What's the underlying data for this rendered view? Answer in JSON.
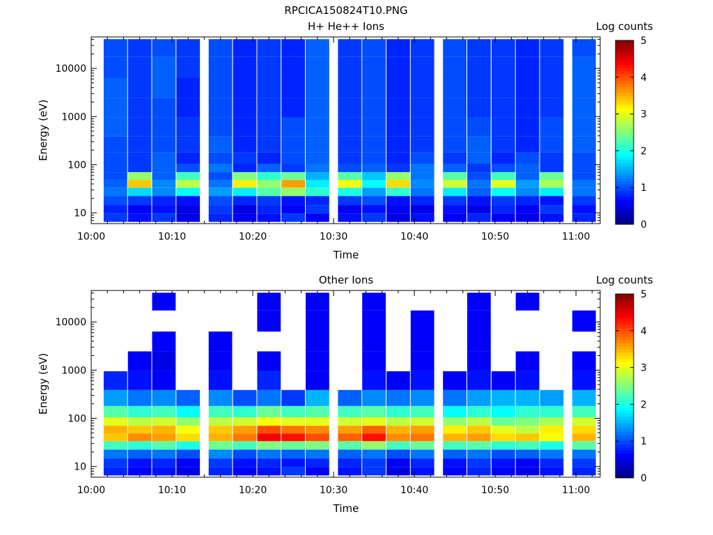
{
  "figure_title": "RPCICA150824T10.PNG",
  "colorbar_label": "Log counts",
  "colorbar_ticks": [
    "0",
    "1",
    "2",
    "3",
    "4",
    "5"
  ],
  "colorbar_range": [
    0,
    5
  ],
  "colormap": "jet",
  "panels": [
    {
      "title": "H+ He++ Ions",
      "xlabel": "Time",
      "ylabel": "Energy (eV)"
    },
    {
      "title": "Other Ions",
      "xlabel": "Time",
      "ylabel": "Energy (eV)"
    }
  ],
  "x_ticks": [
    "10:00",
    "10:10",
    "10:20",
    "10:30",
    "10:40",
    "10:50",
    "11:00"
  ],
  "y_ticks": [
    "10",
    "100",
    "1000",
    "10000"
  ],
  "chart_data": [
    {
      "type": "heatmap",
      "title": "H+ He++ Ions",
      "xlabel": "Time",
      "ylabel": "Energy (eV)",
      "yscale": "log",
      "ylim": [
        6,
        45000
      ],
      "xlim": [
        "10:00",
        "11:03"
      ],
      "zlabel": "Log counts",
      "zlim": [
        0,
        5
      ],
      "x": [
        "10:03",
        "10:06",
        "10:09",
        "10:12",
        "10:16",
        "10:19",
        "10:22",
        "10:25",
        "10:28",
        "10:32",
        "10:35",
        "10:38",
        "10:41",
        "10:45",
        "10:48",
        "10:51",
        "10:54",
        "10:57",
        "11:01"
      ],
      "energy_bands_eV": [
        8,
        12,
        18,
        28,
        40,
        58,
        85,
        130,
        250,
        600,
        1500,
        4000,
        10000,
        30000
      ],
      "z": [
        [
          0.9,
          0.7,
          0.9,
          0.5,
          0.8,
          0.6,
          0.7,
          0.9,
          0.6,
          0.7,
          0.9,
          0.5,
          0.7,
          0.6,
          0.8,
          0.6,
          0.5,
          0.7,
          0.8
        ],
        [
          0.8,
          0.6,
          0.7,
          0.5,
          0.9,
          0.5,
          0.8,
          0.6,
          0.9,
          0.6,
          0.7,
          0.6,
          0.5,
          0.7,
          0.5,
          0.8,
          0.6,
          0.9,
          0.7
        ],
        [
          1.0,
          0.9,
          0.8,
          0.7,
          1.0,
          0.8,
          0.9,
          0.7,
          0.8,
          0.9,
          1.0,
          0.7,
          0.8,
          0.9,
          0.7,
          0.9,
          0.8,
          0.7,
          0.9
        ],
        [
          1.2,
          1.7,
          1.3,
          1.9,
          1.4,
          1.8,
          2.3,
          2.6,
          2.1,
          2.0,
          1.4,
          2.1,
          1.2,
          1.8,
          1.1,
          1.9,
          1.3,
          1.8,
          1.2
        ],
        [
          1.1,
          3.4,
          1.3,
          2.8,
          1.2,
          3.2,
          2.6,
          3.6,
          1.8,
          3.1,
          1.9,
          3.3,
          1.3,
          2.9,
          1.2,
          3.0,
          1.4,
          2.7,
          1.2
        ],
        [
          1.0,
          2.6,
          1.1,
          2.2,
          1.0,
          2.5,
          2.1,
          2.4,
          1.5,
          2.3,
          1.6,
          2.6,
          1.2,
          2.3,
          1.0,
          2.2,
          1.1,
          2.4,
          1.0
        ],
        [
          1.0,
          0.9,
          1.1,
          1.0,
          1.2,
          0.8,
          1.1,
          0.9,
          1.2,
          1.0,
          1.1,
          0.9,
          1.2,
          1.1,
          0.9,
          1.0,
          1.1,
          0.9,
          1.0
        ],
        [
          1.0,
          0.9,
          1.1,
          0.8,
          1.0,
          0.9,
          0.8,
          1.0,
          1.1,
          0.9,
          1.0,
          0.8,
          1.0,
          0.9,
          1.1,
          0.8,
          1.0,
          0.9,
          1.0
        ],
        [
          1.0,
          0.9,
          1.0,
          0.9,
          1.1,
          0.8,
          0.9,
          1.0,
          1.1,
          0.9,
          1.0,
          0.8,
          0.9,
          1.0,
          1.1,
          0.9,
          0.8,
          1.0,
          1.1
        ],
        [
          1.1,
          0.9,
          1.0,
          0.9,
          1.0,
          0.8,
          0.9,
          1.0,
          1.1,
          0.9,
          1.0,
          0.8,
          0.9,
          1.0,
          1.0,
          0.9,
          0.8,
          1.0,
          1.1
        ],
        [
          1.1,
          0.9,
          1.0,
          0.8,
          1.0,
          0.8,
          0.9,
          0.8,
          1.1,
          0.9,
          1.0,
          0.8,
          0.9,
          1.0,
          0.9,
          0.9,
          0.8,
          0.9,
          1.1
        ],
        [
          1.1,
          0.9,
          1.1,
          0.8,
          1.0,
          0.8,
          0.9,
          0.8,
          1.1,
          0.9,
          1.0,
          0.8,
          0.9,
          1.0,
          0.9,
          0.9,
          0.8,
          0.9,
          1.1
        ],
        [
          1.0,
          0.9,
          1.1,
          0.9,
          1.0,
          0.8,
          0.9,
          0.8,
          1.1,
          0.9,
          1.0,
          0.8,
          0.9,
          1.0,
          0.9,
          0.9,
          0.8,
          0.9,
          1.1
        ],
        [
          1.0,
          0.9,
          1.0,
          0.9,
          1.0,
          0.8,
          0.9,
          0.8,
          1.1,
          0.9,
          1.0,
          0.8,
          0.9,
          1.0,
          0.9,
          0.9,
          0.8,
          0.9,
          1.0
        ]
      ]
    },
    {
      "type": "heatmap",
      "title": "Other Ions",
      "xlabel": "Time",
      "ylabel": "Energy (eV)",
      "yscale": "log",
      "ylim": [
        6,
        45000
      ],
      "xlim": [
        "10:00",
        "11:03"
      ],
      "zlabel": "Log counts",
      "zlim": [
        0,
        5
      ],
      "x": [
        "10:03",
        "10:06",
        "10:09",
        "10:12",
        "10:16",
        "10:19",
        "10:22",
        "10:25",
        "10:28",
        "10:32",
        "10:35",
        "10:38",
        "10:41",
        "10:45",
        "10:48",
        "10:51",
        "10:54",
        "10:57",
        "11:01"
      ],
      "energy_bands_eV": [
        8,
        12,
        18,
        28,
        40,
        58,
        85,
        130,
        250,
        600,
        1500,
        4000,
        10000,
        30000
      ],
      "z": [
        [
          0.8,
          0.6,
          0.7,
          0.5,
          0.8,
          0.6,
          0.7,
          0.9,
          0.6,
          0.7,
          0.9,
          0.5,
          0.7,
          0.6,
          0.8,
          0.6,
          0.5,
          0.7,
          0.8
        ],
        [
          0.9,
          0.7,
          0.8,
          0.6,
          0.9,
          0.7,
          0.8,
          0.7,
          0.8,
          0.8,
          0.9,
          0.6,
          0.8,
          0.7,
          0.9,
          0.7,
          0.6,
          0.8,
          0.9
        ],
        [
          1.2,
          1.1,
          1.2,
          1.0,
          1.3,
          1.0,
          1.2,
          1.1,
          1.2,
          1.1,
          1.2,
          1.0,
          1.2,
          1.1,
          1.2,
          1.0,
          1.1,
          1.2,
          1.2
        ],
        [
          2.2,
          2.1,
          2.3,
          2.0,
          2.4,
          2.2,
          2.5,
          2.4,
          2.5,
          2.3,
          2.6,
          2.2,
          2.4,
          2.2,
          2.3,
          2.1,
          2.2,
          2.0,
          2.3
        ],
        [
          3.4,
          3.7,
          3.6,
          3.3,
          3.5,
          3.8,
          4.4,
          4.3,
          4.0,
          3.9,
          4.3,
          3.7,
          3.8,
          3.5,
          3.6,
          3.3,
          3.4,
          3.1,
          3.5
        ],
        [
          3.5,
          3.4,
          3.5,
          3.1,
          3.4,
          3.6,
          4.0,
          3.8,
          3.7,
          3.6,
          3.9,
          3.5,
          3.6,
          3.2,
          3.4,
          3.0,
          2.8,
          3.2,
          3.3
        ],
        [
          3.0,
          2.8,
          2.9,
          2.6,
          2.8,
          2.9,
          3.1,
          3.0,
          3.0,
          2.9,
          3.0,
          2.8,
          2.9,
          2.6,
          2.8,
          2.4,
          2.5,
          2.7,
          2.9
        ],
        [
          2.3,
          2.1,
          2.2,
          1.9,
          2.2,
          2.1,
          2.4,
          2.2,
          2.3,
          2.2,
          2.3,
          2.1,
          2.2,
          1.9,
          2.1,
          1.9,
          2.1,
          2.1,
          2.2
        ],
        [
          1.4,
          1.2,
          1.3,
          1.1,
          1.3,
          1.0,
          1.2,
          0.9,
          1.5,
          1.1,
          1.3,
          1.2,
          1.3,
          1.2,
          1.4,
          1.5,
          1.5,
          1.4,
          1.5
        ],
        [
          0.8,
          0.7,
          0.6,
          0.0,
          0.7,
          0.0,
          0.8,
          0.0,
          0.6,
          0.0,
          0.7,
          0.6,
          0.7,
          0.6,
          0.7,
          0.6,
          0.7,
          0.0,
          0.7
        ],
        [
          0.0,
          0.6,
          0.5,
          0.0,
          0.6,
          0.0,
          0.6,
          0.0,
          0.6,
          0.0,
          0.6,
          0.0,
          0.6,
          0.0,
          0.6,
          0.0,
          0.6,
          0.0,
          0.6
        ],
        [
          0.0,
          0.0,
          0.6,
          0.0,
          0.6,
          0.0,
          0.0,
          0.0,
          0.6,
          0.0,
          0.6,
          0.0,
          0.6,
          0.0,
          0.6,
          0.0,
          0.0,
          0.0,
          0.0
        ],
        [
          0.0,
          0.0,
          0.0,
          0.0,
          0.0,
          0.0,
          0.6,
          0.0,
          0.6,
          0.0,
          0.6,
          0.0,
          0.6,
          0.0,
          0.6,
          0.0,
          0.0,
          0.0,
          0.6
        ],
        [
          0.0,
          0.0,
          0.6,
          0.0,
          0.0,
          0.0,
          0.6,
          0.0,
          0.6,
          0.0,
          0.6,
          0.0,
          0.0,
          0.0,
          0.6,
          0.0,
          0.6,
          0.0,
          0.0
        ]
      ]
    }
  ]
}
